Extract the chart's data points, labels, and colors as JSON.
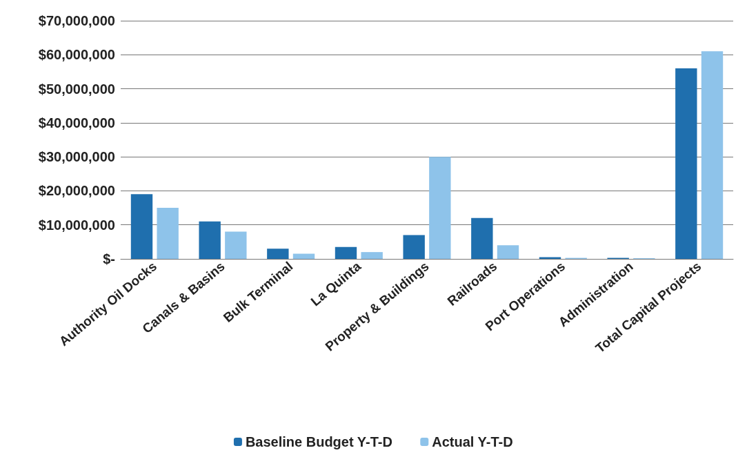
{
  "chart_data": {
    "type": "bar",
    "categories": [
      "Authority Oil Docks",
      "Canals & Basins",
      "Bulk Terminal",
      "La Quinta",
      "Property & Buildings",
      "Railroads",
      "Port Operations",
      "Administration",
      "Total Capital Projects"
    ],
    "series": [
      {
        "name": "Baseline Budget Y-T-D",
        "color": "#1f6fae",
        "values": [
          19000000,
          11000000,
          3000000,
          3500000,
          7000000,
          12000000,
          500000,
          300000,
          56000000
        ]
      },
      {
        "name": "Actual Y-T-D",
        "color": "#8ec3ea",
        "values": [
          15000000,
          8000000,
          1500000,
          2000000,
          30000000,
          4000000,
          300000,
          200000,
          61000000
        ]
      }
    ],
    "ylim": [
      0,
      70000000
    ],
    "yticks": [
      {
        "value": 0,
        "label": "$-"
      },
      {
        "value": 10000000,
        "label": "$10,000,000"
      },
      {
        "value": 20000000,
        "label": "$20,000,000"
      },
      {
        "value": 30000000,
        "label": "$30,000,000"
      },
      {
        "value": 40000000,
        "label": "$40,000,000"
      },
      {
        "value": 50000000,
        "label": "$50,000,000"
      },
      {
        "value": 60000000,
        "label": "$60,000,000"
      },
      {
        "value": 70000000,
        "label": "$70,000,000"
      }
    ],
    "grid": "y",
    "legend": "bottom"
  }
}
